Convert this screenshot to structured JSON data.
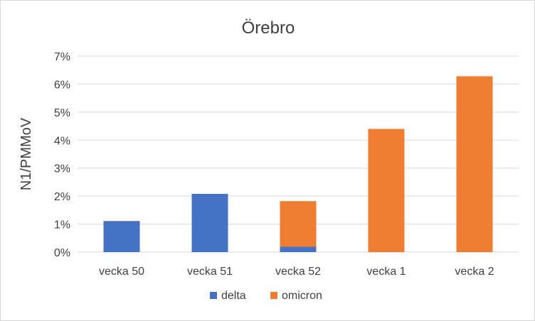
{
  "chart_data": {
    "type": "bar",
    "stacked": true,
    "title": "Örebro",
    "xlabel": "",
    "ylabel": "N1/PMMoV",
    "ylim": [
      0,
      0.07
    ],
    "yticks": [
      "0%",
      "1%",
      "2%",
      "3%",
      "4%",
      "5%",
      "6%",
      "7%"
    ],
    "categories": [
      "vecka 50",
      "vecka 51",
      "vecka 52",
      "vecka 1",
      "vecka 2"
    ],
    "series": [
      {
        "name": "delta",
        "color": "#4472c4",
        "values": [
          0.0111,
          0.0208,
          0.0019,
          0,
          0
        ]
      },
      {
        "name": "omicron",
        "color": "#ed7d31",
        "values": [
          0,
          0,
          0.0163,
          0.044,
          0.0628
        ]
      }
    ],
    "grid": true,
    "legend": "bottom"
  }
}
